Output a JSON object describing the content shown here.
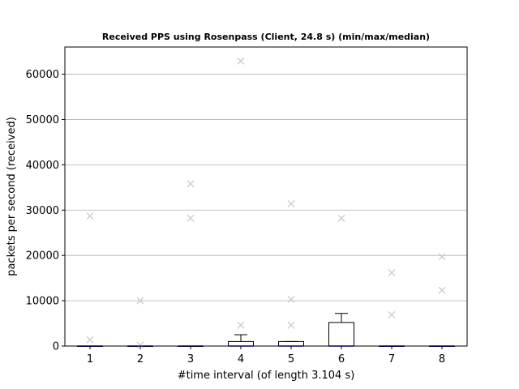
{
  "chart_data": {
    "type": "box",
    "title": "Received PPS using Rosenpass (Client, 24.8 s) (min/max/median)",
    "xlabel": "#time interval (of length 3.104 s)",
    "ylabel": "packets per second (received)",
    "categories": [
      "1",
      "2",
      "3",
      "4",
      "5",
      "6",
      "7",
      "8"
    ],
    "ylim": [
      0,
      66000
    ],
    "yticks": [
      0,
      10000,
      20000,
      30000,
      40000,
      50000,
      60000
    ],
    "ytick_labels": [
      "0",
      "10000",
      "20000",
      "30000",
      "40000",
      "50000",
      "60000"
    ],
    "grid": "y",
    "boxes": [
      {
        "category": "1",
        "q1": 0,
        "median": 0,
        "q3": 0,
        "whisker_low": 0,
        "whisker_high": 0,
        "outliers": [
          1400,
          28700
        ]
      },
      {
        "category": "2",
        "q1": 0,
        "median": 0,
        "q3": 0,
        "whisker_low": 0,
        "whisker_high": 0,
        "outliers": [
          200,
          10000
        ]
      },
      {
        "category": "3",
        "q1": 0,
        "median": 0,
        "q3": 0,
        "whisker_low": 0,
        "whisker_high": 0,
        "outliers": [
          28200,
          35800
        ]
      },
      {
        "category": "4",
        "q1": 0,
        "median": 0,
        "q3": 1000,
        "whisker_low": 0,
        "whisker_high": 2500,
        "outliers": [
          4600,
          62900
        ]
      },
      {
        "category": "5",
        "q1": 0,
        "median": 0,
        "q3": 1000,
        "whisker_low": 0,
        "whisker_high": 1000,
        "outliers": [
          4600,
          10300,
          31400
        ]
      },
      {
        "category": "6",
        "q1": 0,
        "median": 0,
        "q3": 5200,
        "whisker_low": 0,
        "whisker_high": 7200,
        "outliers": [
          28200
        ]
      },
      {
        "category": "7",
        "q1": 0,
        "median": 0,
        "q3": 0,
        "whisker_low": 0,
        "whisker_high": 0,
        "outliers": [
          6900,
          16200
        ]
      },
      {
        "category": "8",
        "q1": 0,
        "median": 0,
        "q3": 0,
        "whisker_low": 0,
        "whisker_high": 0,
        "outliers": [
          12300,
          19700
        ]
      }
    ],
    "colors": {
      "box": "#000000",
      "median": "#0000ff",
      "outlier": "#c8c8c8",
      "grid": "#b0b0b0"
    }
  }
}
